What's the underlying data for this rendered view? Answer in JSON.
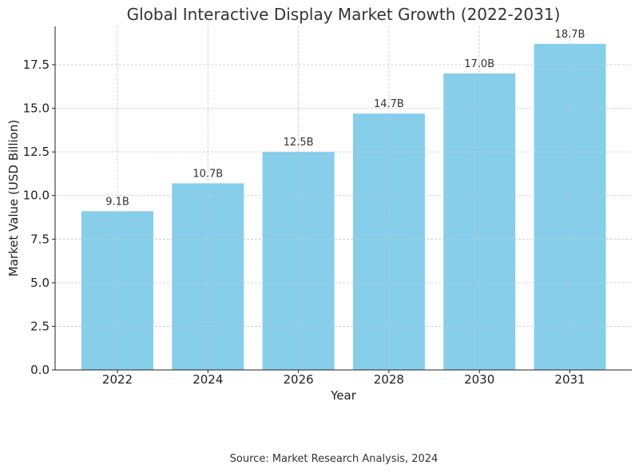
{
  "chart_data": {
    "type": "bar",
    "title": "Global Interactive Display Market Growth (2022-2031)",
    "xlabel": "Year",
    "ylabel": "Market Value (USD Billion)",
    "categories": [
      "2022",
      "2024",
      "2026",
      "2028",
      "2030",
      "2031"
    ],
    "values": [
      9.1,
      10.7,
      12.5,
      14.7,
      17.0,
      18.7
    ],
    "data_labels": [
      "9.1B",
      "10.7B",
      "12.5B",
      "14.7B",
      "17.0B",
      "18.7B"
    ],
    "ylim": [
      0,
      19.7
    ],
    "yticks": [
      0,
      2.5,
      5,
      7.5,
      10,
      12.5,
      15,
      17.5
    ],
    "ytick_labels": [
      "0.0",
      "2.5",
      "5.0",
      "7.5",
      "10.0",
      "12.5",
      "15.0",
      "17.5"
    ],
    "grid": true,
    "bar_color": "#87ceeb"
  },
  "footer": {
    "source": "Source: Market Research Analysis, 2024"
  }
}
